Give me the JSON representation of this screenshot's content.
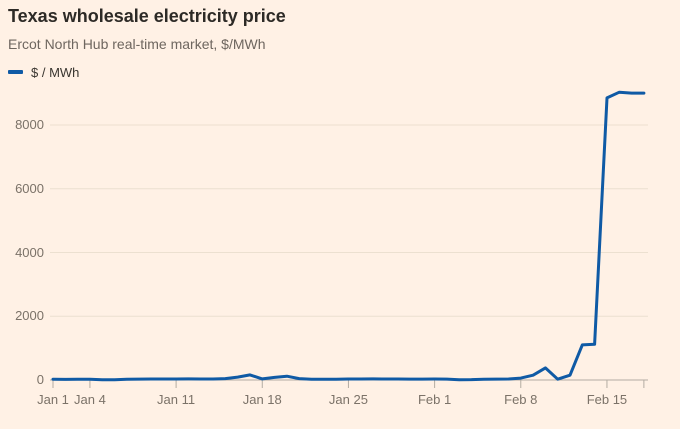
{
  "header": {
    "title": "Texas wholesale electricity price",
    "subtitle": "Ercot North Hub real-time market, $/MWh"
  },
  "legend": {
    "label": "$ / MWh",
    "swatch_color": "#0F5AA5"
  },
  "colors": {
    "background": "#FFF1E5",
    "line": "#0F5AA5",
    "gridline": "#ECE0D0",
    "axis": "#B3ACA2",
    "axis_text": "#7B7268",
    "title_text": "#2D2A26",
    "subtitle_text": "#6E665F"
  },
  "chart_data": {
    "type": "line",
    "title": "Texas wholesale electricity price",
    "subtitle": "Ercot North Hub real-time market, $/MWh",
    "xlabel": "",
    "ylabel": "$/MWh",
    "grid": "horizontal",
    "legend_position": "top-left",
    "ylim": [
      0,
      9400
    ],
    "yticks": [
      0,
      2000,
      4000,
      6000,
      8000
    ],
    "xticks": [
      "Jan 1",
      "Jan 4",
      "Jan 11",
      "Jan 18",
      "Jan 25",
      "Feb 1",
      "Feb 8",
      "Feb 15"
    ],
    "series": [
      {
        "name": "$ / MWh",
        "color": "#0F5AA5",
        "x": [
          "Jan 1",
          "Jan 2",
          "Jan 3",
          "Jan 4",
          "Jan 5",
          "Jan 6",
          "Jan 7",
          "Jan 8",
          "Jan 9",
          "Jan 10",
          "Jan 11",
          "Jan 12",
          "Jan 13",
          "Jan 14",
          "Jan 15",
          "Jan 16",
          "Jan 17",
          "Jan 18",
          "Jan 19",
          "Jan 20",
          "Jan 21",
          "Jan 22",
          "Jan 23",
          "Jan 24",
          "Jan 25",
          "Jan 26",
          "Jan 27",
          "Jan 28",
          "Jan 29",
          "Jan 30",
          "Jan 31",
          "Feb 1",
          "Feb 2",
          "Feb 3",
          "Feb 4",
          "Feb 5",
          "Feb 6",
          "Feb 7",
          "Feb 8",
          "Feb 9",
          "Feb 10",
          "Feb 11",
          "Feb 12",
          "Feb 13",
          "Feb 14",
          "Feb 15",
          "Feb 16",
          "Feb 17",
          "Feb 18"
        ],
        "values": [
          25,
          20,
          22,
          25,
          8,
          10,
          22,
          28,
          30,
          30,
          32,
          35,
          30,
          30,
          45,
          90,
          160,
          35,
          80,
          120,
          45,
          25,
          22,
          25,
          30,
          30,
          35,
          32,
          30,
          28,
          28,
          30,
          28,
          10,
          12,
          25,
          28,
          32,
          60,
          150,
          380,
          25,
          150,
          1100,
          1120,
          8850,
          9030,
          9000,
          9000
        ]
      }
    ]
  }
}
